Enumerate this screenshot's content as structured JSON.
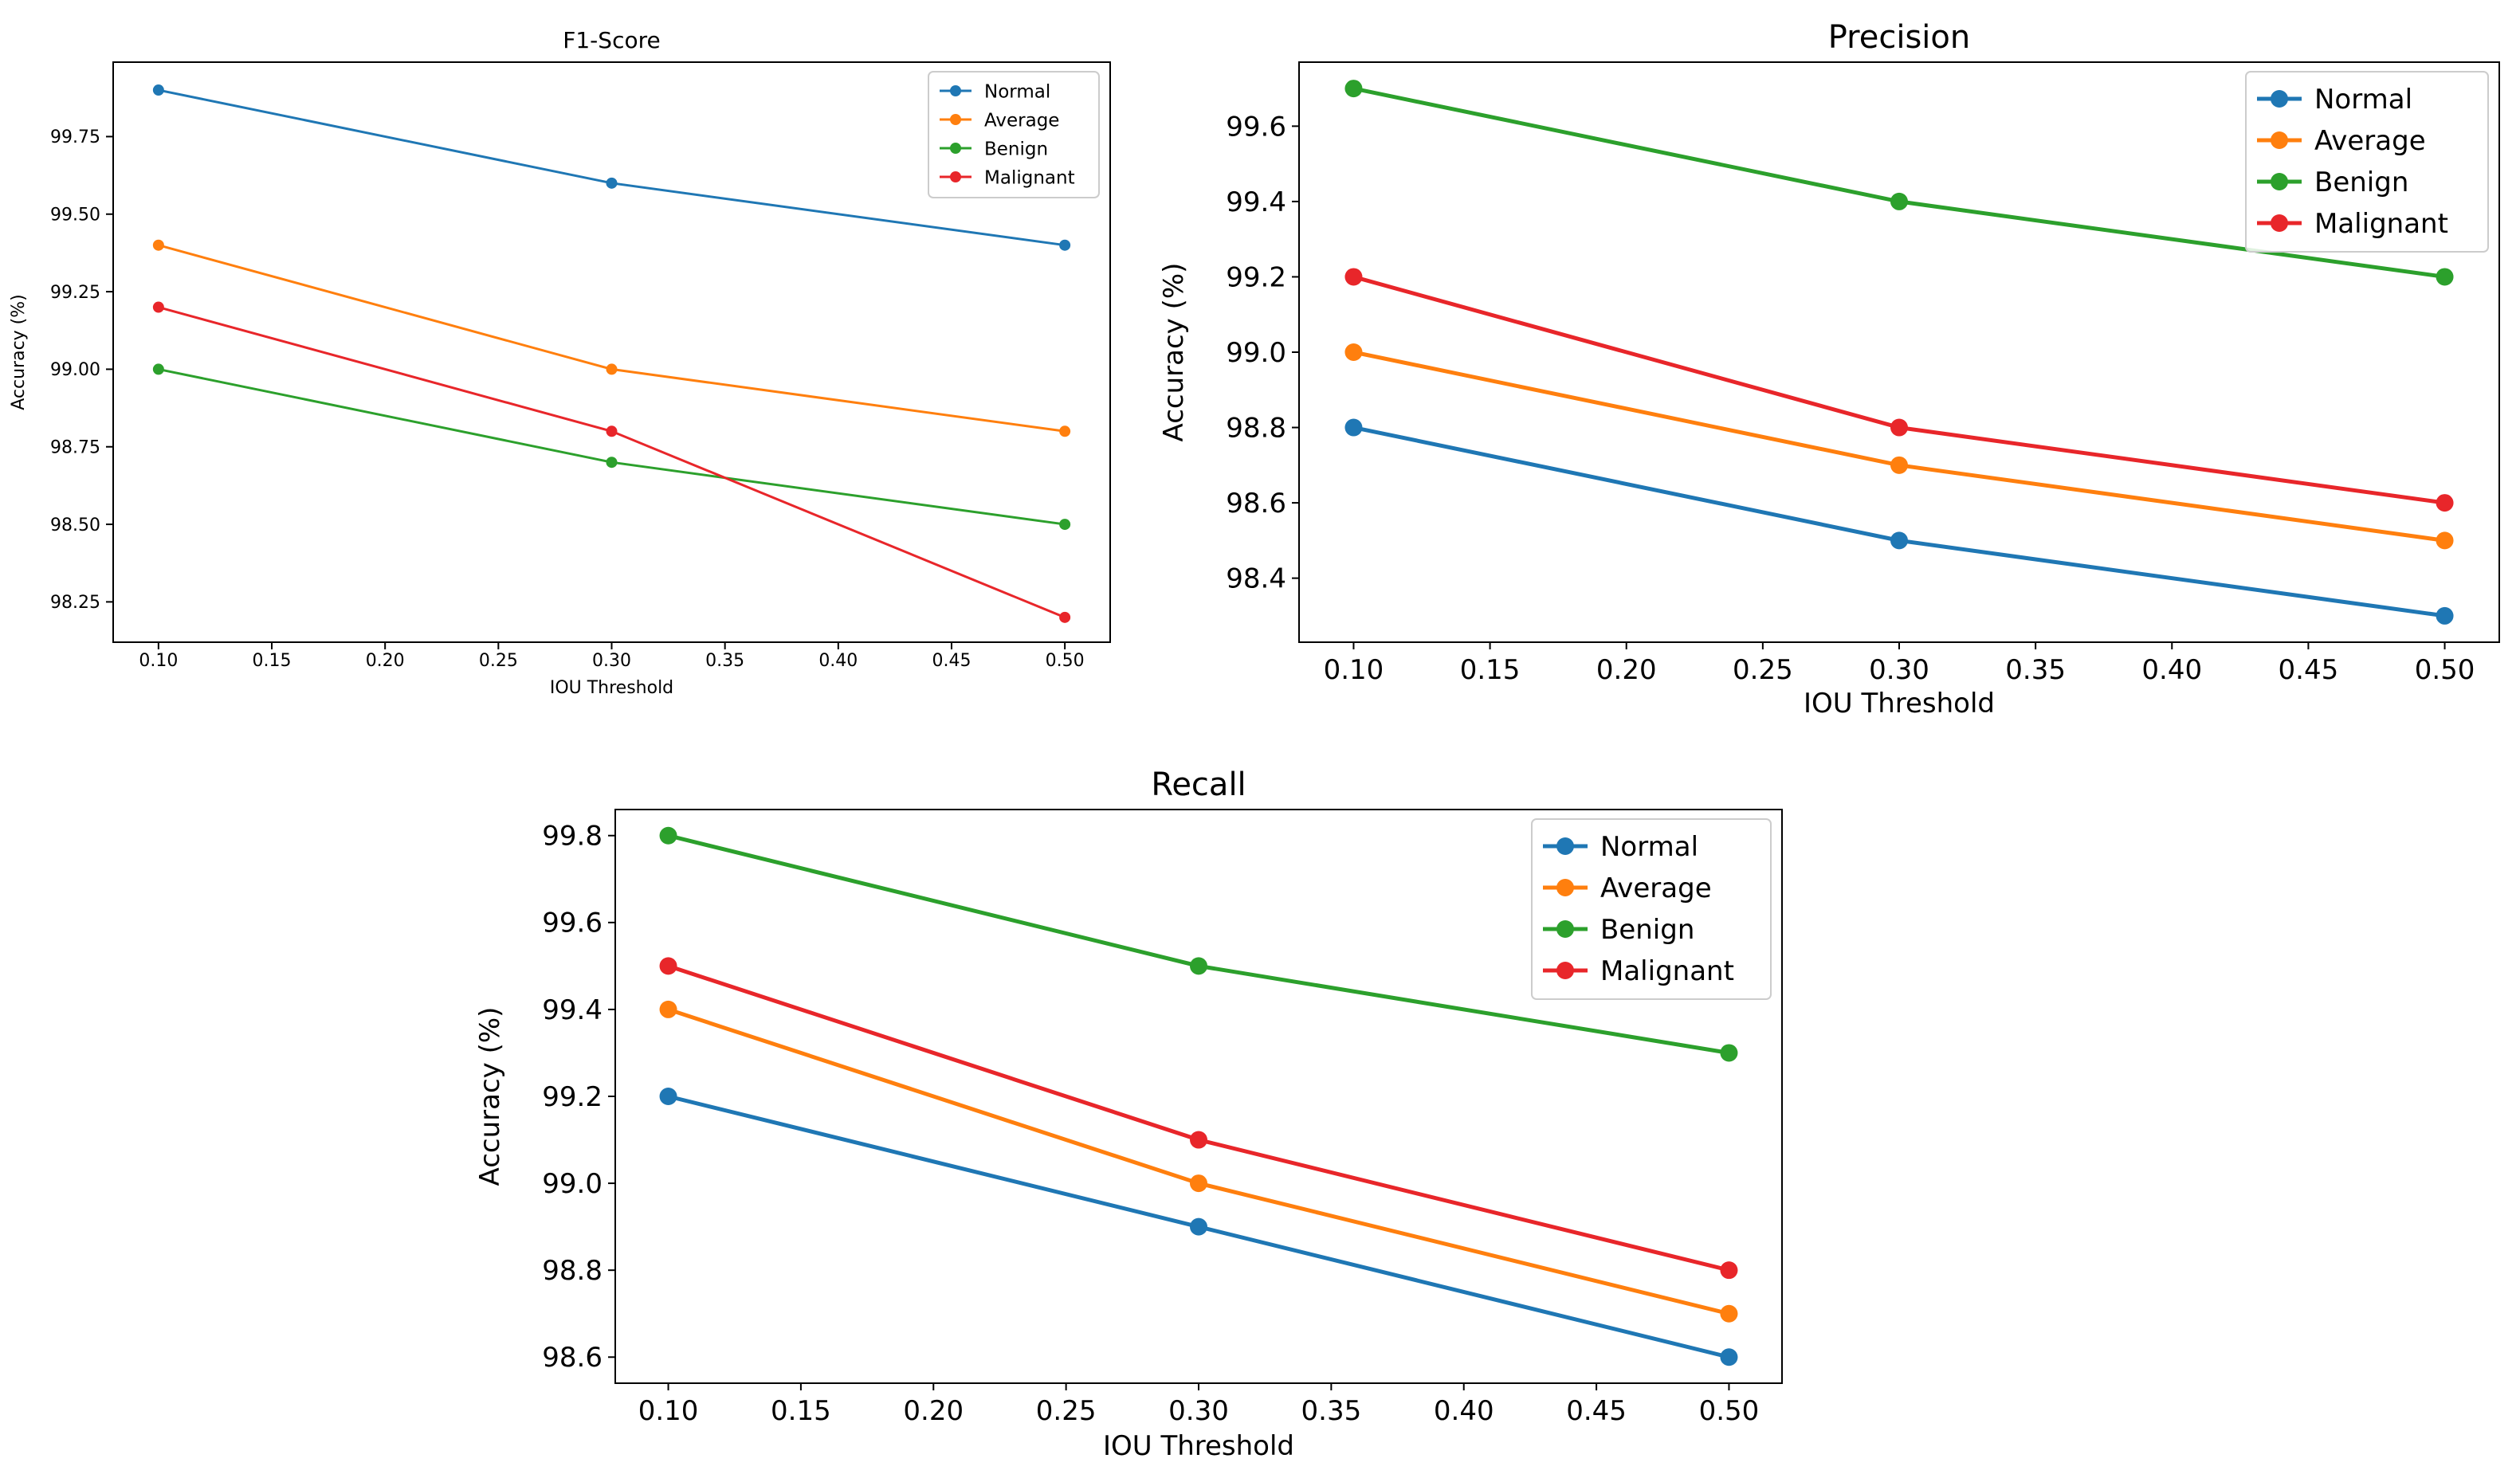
{
  "chart_data": [
    {
      "type": "line",
      "title": "F1-Score",
      "xlabel": "IOU Threshold",
      "ylabel": "Accuracy (%)",
      "x": [
        0.1,
        0.3,
        0.5
      ],
      "xticks": [
        "0.10",
        "0.15",
        "0.20",
        "0.25",
        "0.30",
        "0.35",
        "0.40",
        "0.45",
        "0.50"
      ],
      "yticks": [
        "98.25",
        "98.50",
        "98.75",
        "99.00",
        "99.25",
        "99.50",
        "99.75"
      ],
      "xlim": [
        0.08,
        0.52
      ],
      "ylim": [
        98.12,
        99.99
      ],
      "legend_position": "top-right",
      "series": [
        {
          "name": "Normal",
          "color": "#1f77b4",
          "values": [
            99.9,
            99.6,
            99.4
          ]
        },
        {
          "name": "Average",
          "color": "#ff7f0e",
          "values": [
            99.4,
            99.0,
            98.8
          ]
        },
        {
          "name": "Benign",
          "color": "#2ca02c",
          "values": [
            99.0,
            98.7,
            98.5
          ]
        },
        {
          "name": "Malignant",
          "color": "#e8262a",
          "values": [
            99.2,
            98.8,
            98.2
          ]
        }
      ]
    },
    {
      "type": "line",
      "title": "Precision",
      "xlabel": "IOU Threshold",
      "ylabel": "Accuracy (%)",
      "x": [
        0.1,
        0.3,
        0.5
      ],
      "xticks": [
        "0.10",
        "0.15",
        "0.20",
        "0.25",
        "0.30",
        "0.35",
        "0.40",
        "0.45",
        "0.50"
      ],
      "yticks": [
        "98.4",
        "98.6",
        "98.8",
        "99.0",
        "99.2",
        "99.4",
        "99.6"
      ],
      "xlim": [
        0.08,
        0.52
      ],
      "ylim": [
        98.23,
        99.77
      ],
      "legend_position": "top-right",
      "series": [
        {
          "name": "Normal",
          "color": "#1f77b4",
          "values": [
            98.8,
            98.5,
            98.3
          ]
        },
        {
          "name": "Average",
          "color": "#ff7f0e",
          "values": [
            99.0,
            98.7,
            98.5
          ]
        },
        {
          "name": "Benign",
          "color": "#2ca02c",
          "values": [
            99.7,
            99.4,
            99.2
          ]
        },
        {
          "name": "Malignant",
          "color": "#e8262a",
          "values": [
            99.2,
            98.8,
            98.6
          ]
        }
      ]
    },
    {
      "type": "line",
      "title": "Recall",
      "xlabel": "IOU Threshold",
      "ylabel": "Accuracy (%)",
      "x": [
        0.1,
        0.3,
        0.5
      ],
      "xticks": [
        "0.10",
        "0.15",
        "0.20",
        "0.25",
        "0.30",
        "0.35",
        "0.40",
        "0.45",
        "0.50"
      ],
      "yticks": [
        "98.6",
        "98.8",
        "99.0",
        "99.2",
        "99.4",
        "99.6",
        "99.8"
      ],
      "xlim": [
        0.08,
        0.52
      ],
      "ylim": [
        98.54,
        99.86
      ],
      "legend_position": "top-right",
      "series": [
        {
          "name": "Normal",
          "color": "#1f77b4",
          "values": [
            99.2,
            98.9,
            98.6
          ]
        },
        {
          "name": "Average",
          "color": "#ff7f0e",
          "values": [
            99.4,
            99.0,
            98.7
          ]
        },
        {
          "name": "Benign",
          "color": "#2ca02c",
          "values": [
            99.8,
            99.5,
            99.3
          ]
        },
        {
          "name": "Malignant",
          "color": "#e8262a",
          "values": [
            99.5,
            99.1,
            98.8
          ]
        }
      ]
    }
  ]
}
